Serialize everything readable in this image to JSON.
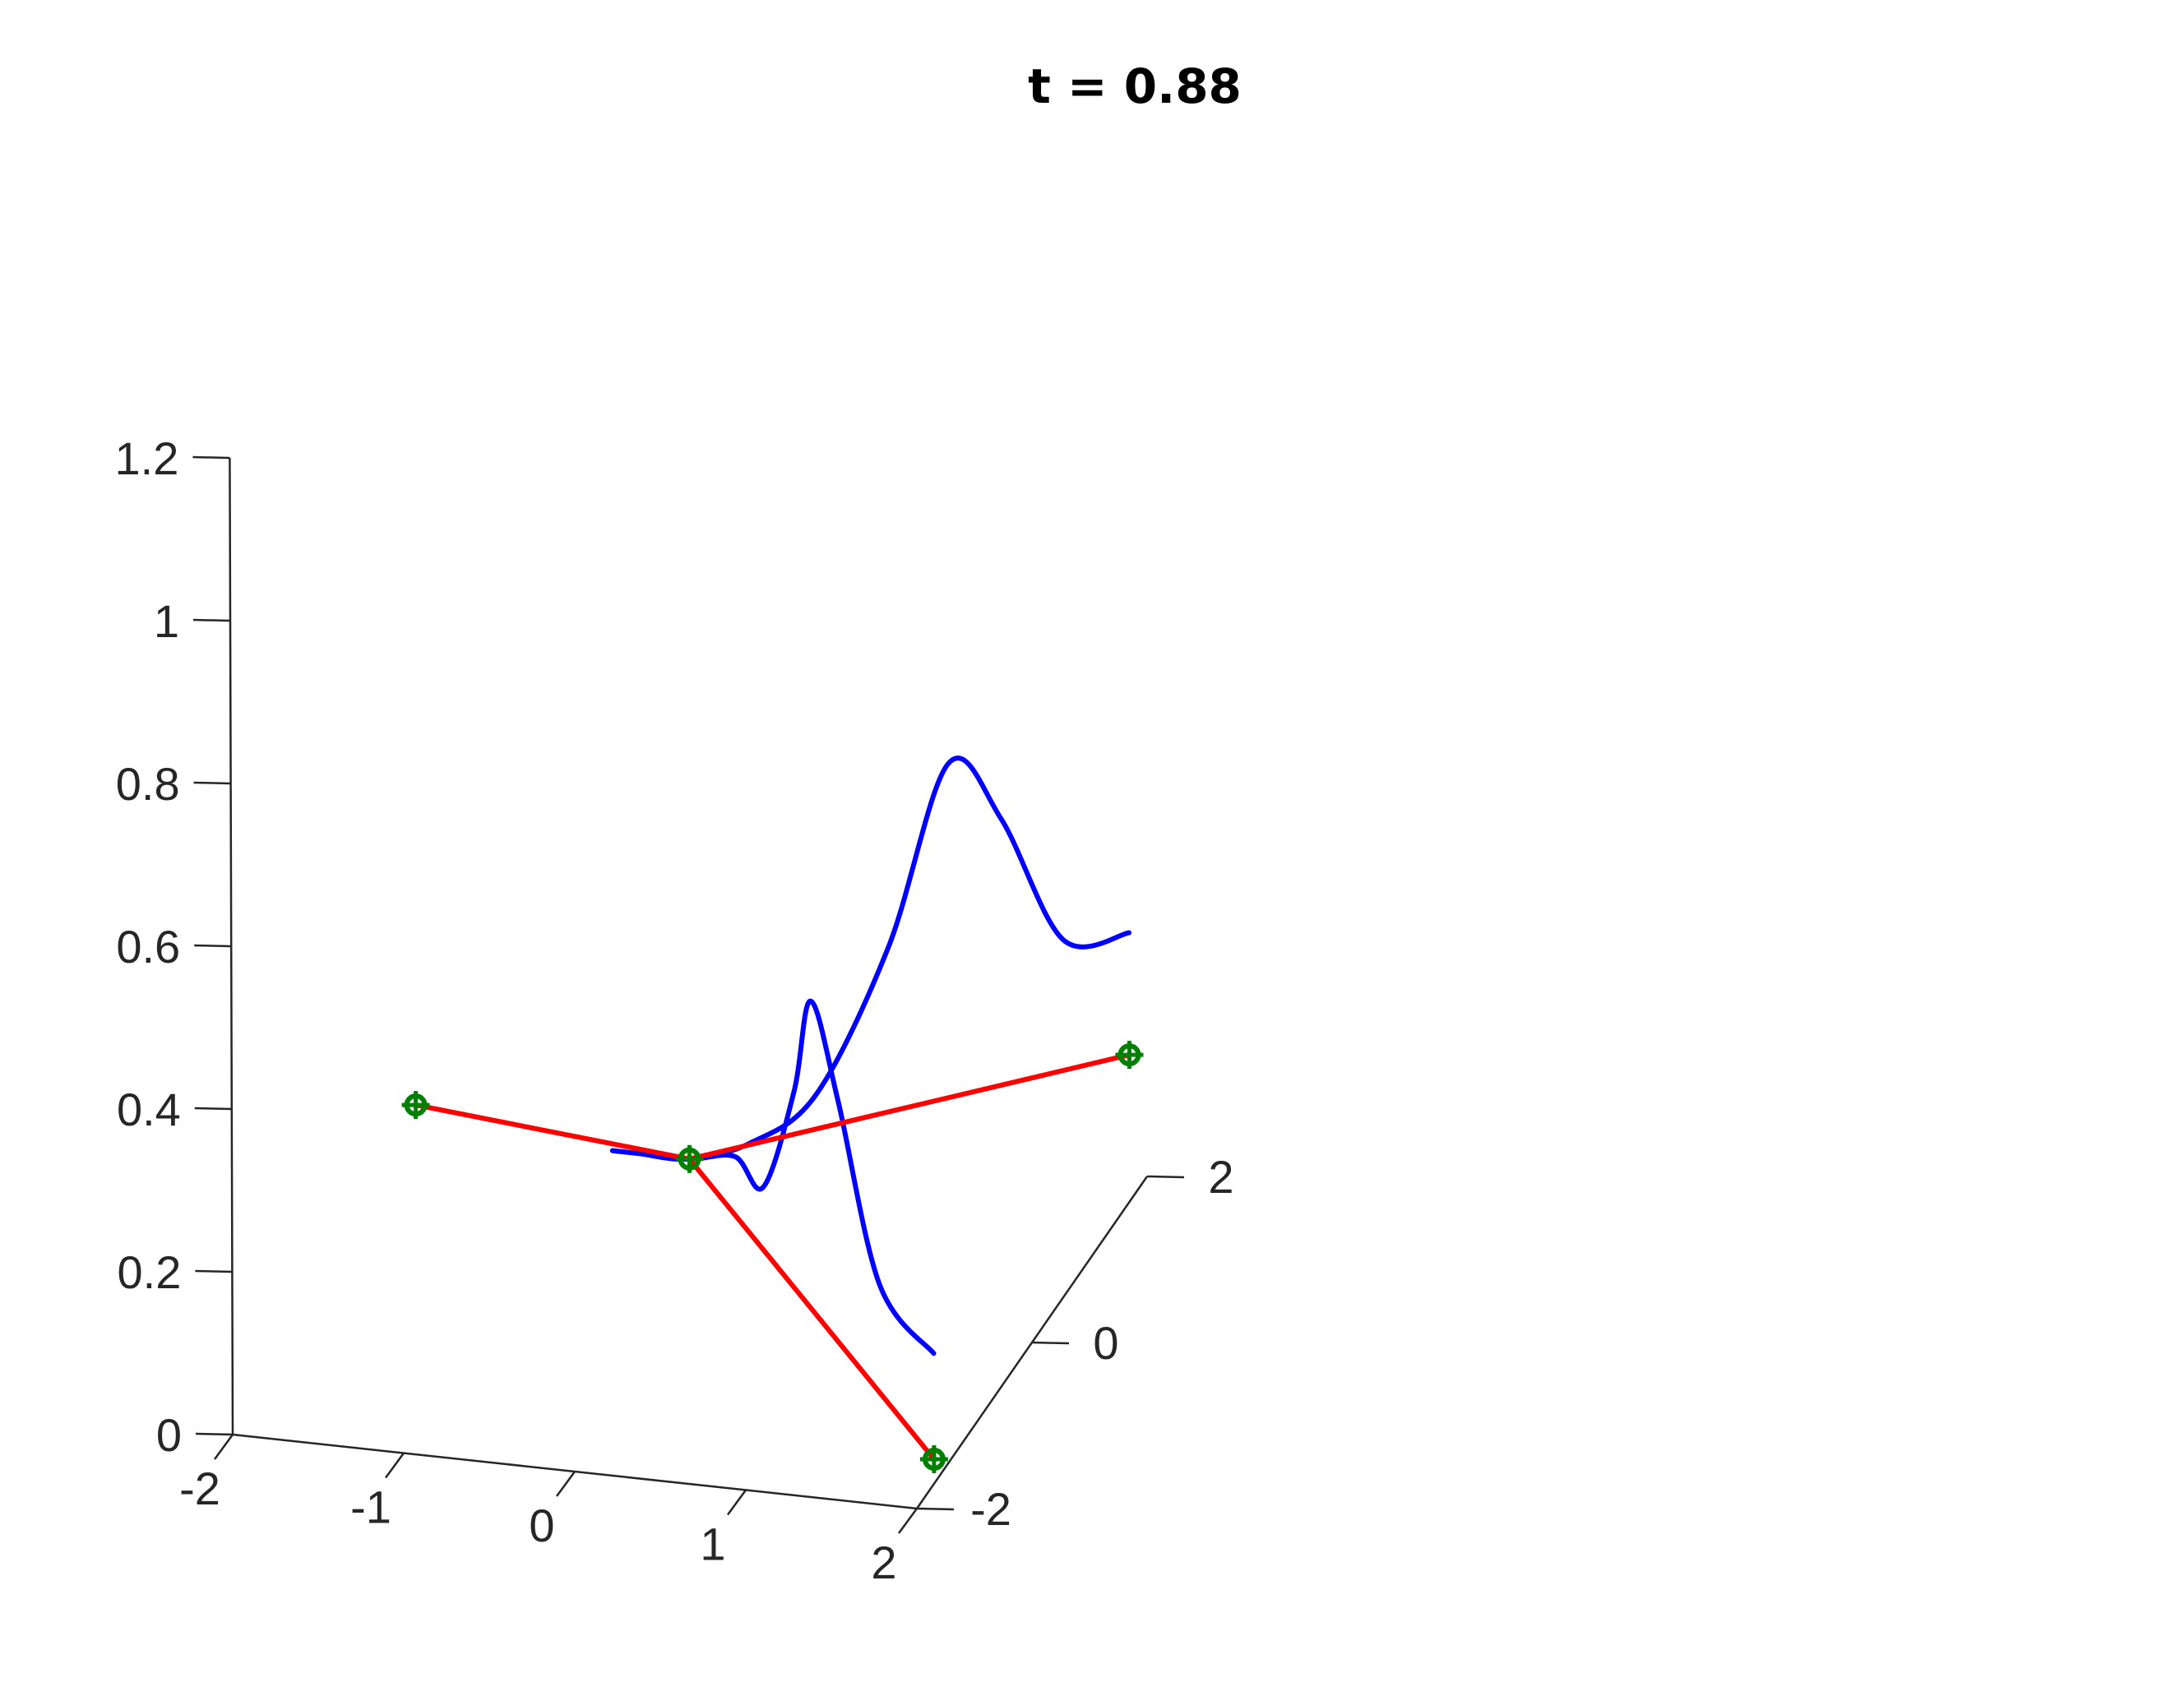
{
  "chart_data": {
    "type": "line",
    "title": "t = 0.88",
    "xlabel": "",
    "ylabel": "",
    "zlabel": "",
    "grid": false,
    "xlim": [
      -2,
      2
    ],
    "ylim": [
      -2,
      2
    ],
    "zlim": [
      0,
      1.2
    ],
    "x_ticks": [
      "-2",
      "-1",
      "0",
      "1",
      "2"
    ],
    "y_ticks": [
      "-2",
      "0",
      "2"
    ],
    "z_ticks": [
      "0",
      "0.2",
      "0.4",
      "0.6",
      "0.8",
      "1",
      "1.2"
    ],
    "colors": {
      "rods": "#ff0000",
      "waves": "#0000ff",
      "nodes": "#008000"
    },
    "series": [
      {
        "type": "rod",
        "x": [
          -1.6,
          0.0
        ],
        "y": [
          0,
          0
        ],
        "z": [
          0.21,
          0.18
        ]
      },
      {
        "type": "rod",
        "x": [
          0.0,
          2.0
        ],
        "y": [
          0,
          1.7
        ],
        "z": [
          0.18,
          0.18
        ]
      },
      {
        "type": "rod",
        "x": [
          0.0,
          2.0
        ],
        "y": [
          0,
          -1.7
        ],
        "z": [
          0.18,
          0.03
        ]
      },
      {
        "type": "wave",
        "x": [
          -0.45,
          -0.3,
          0.0,
          0.3,
          0.6,
          0.9,
          1.15,
          1.4,
          1.7,
          2.0
        ],
        "y": [
          0,
          0,
          0,
          0.16,
          0.42,
          0.79,
          1.1,
          1.27,
          1.45,
          1.7
        ],
        "z": [
          0.18,
          0.18,
          0.18,
          0.19,
          0.23,
          0.38,
          0.58,
          0.5,
          0.34,
          0.33
        ]
      },
      {
        "type": "wave",
        "x": [
          -0.45,
          -0.3,
          0.0,
          0.3,
          0.6,
          0.9,
          1.05,
          1.3,
          1.6,
          2.0
        ],
        "y": [
          0,
          0,
          0,
          -0.1,
          -0.5,
          -0.85,
          -1.0,
          -1.27,
          -1.45,
          -1.7
        ],
        "z": [
          0.18,
          0.18,
          0.18,
          0.2,
          0.21,
          0.37,
          0.5,
          0.41,
          0.21,
          0.16
        ]
      }
    ],
    "nodes": [
      {
        "x": -1.6,
        "y": 0,
        "z": 0.21
      },
      {
        "x": 0.0,
        "y": 0,
        "z": 0.18
      },
      {
        "x": 2.0,
        "y": 1.7,
        "z": 0.18
      },
      {
        "x": 2.0,
        "y": -1.7,
        "z": 0.03
      }
    ]
  }
}
